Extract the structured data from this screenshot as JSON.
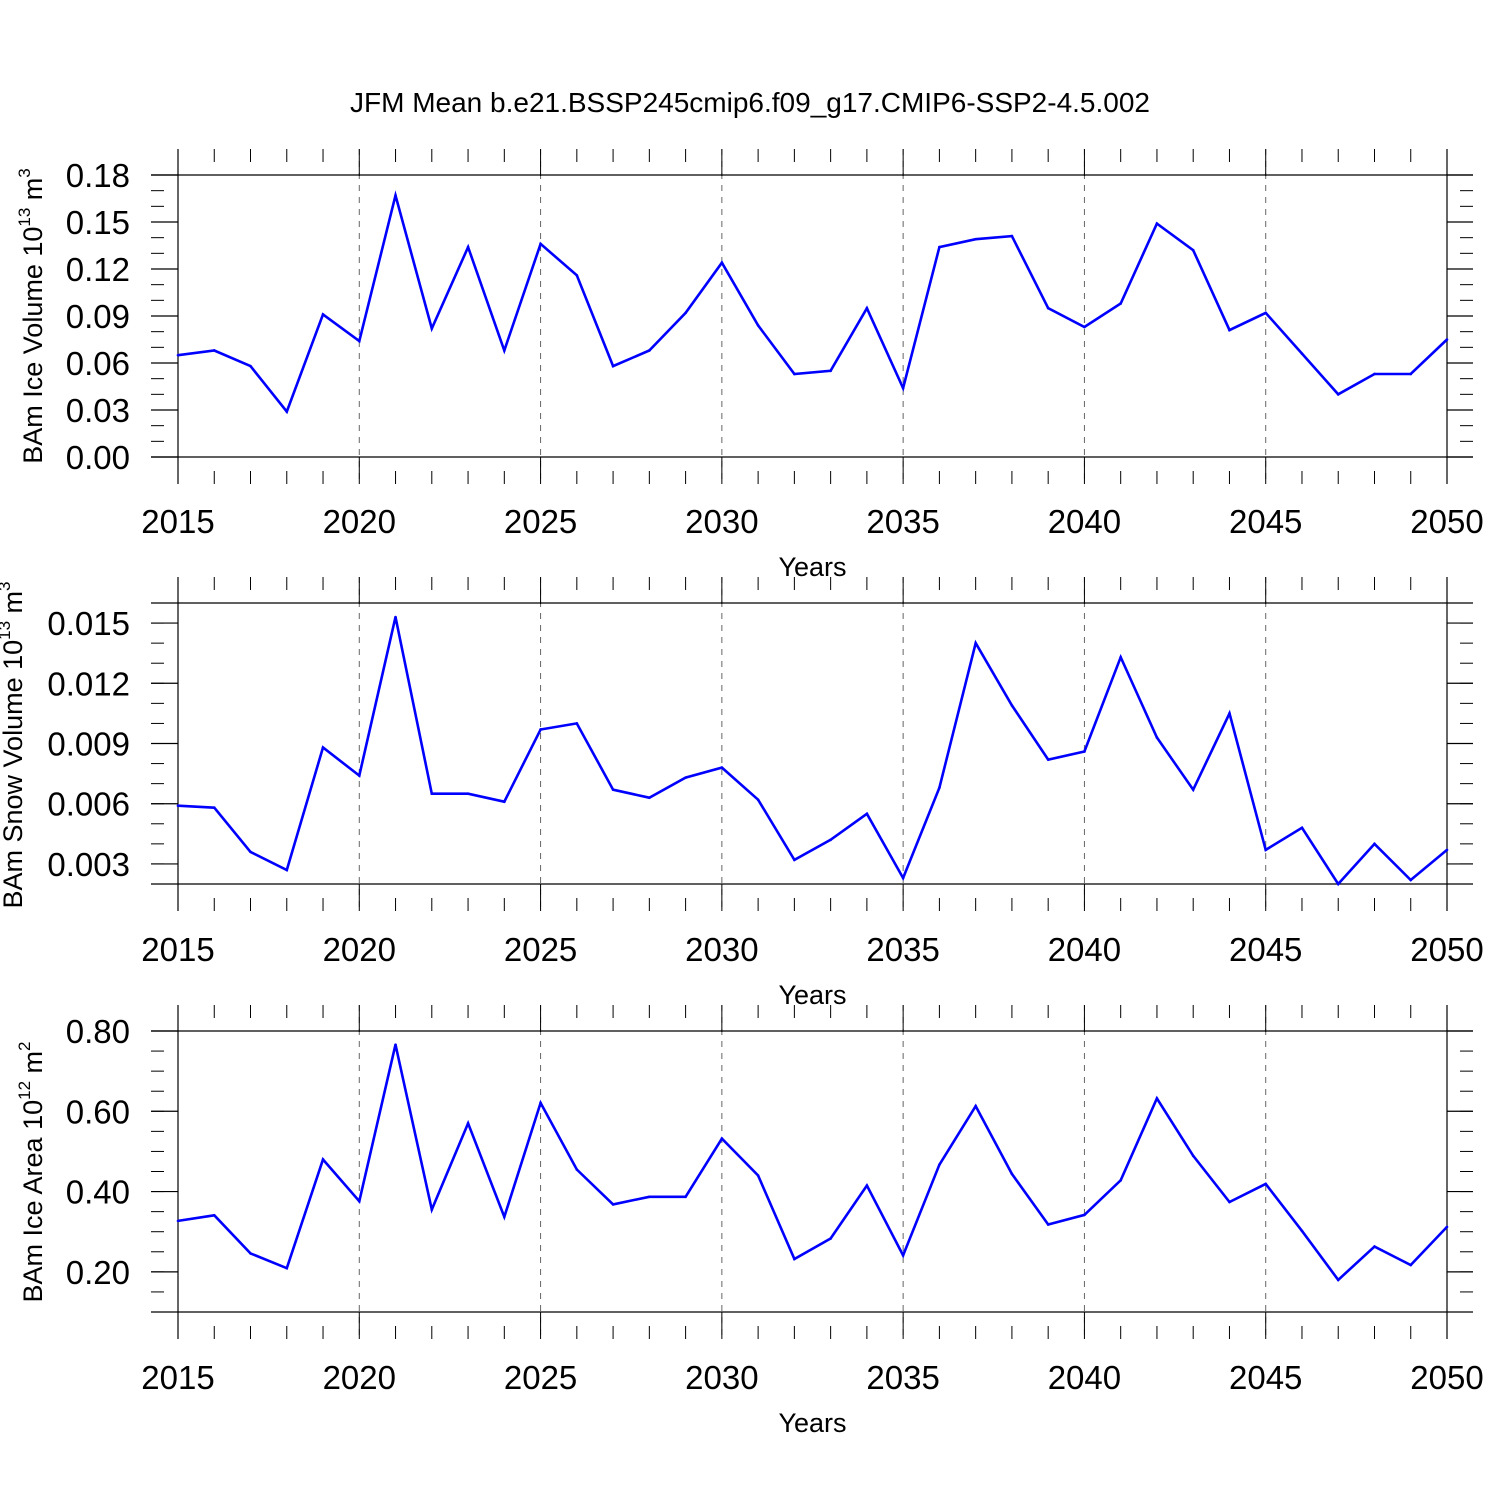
{
  "title": "JFM Mean b.e21.BSSP245cmip6.f09_g17.CMIP6-SSP2-4.5.002",
  "line_color": "#0000ff",
  "chart_data": [
    {
      "type": "line",
      "id": "ice-volume",
      "ylabel": {
        "main": "BAm Ice Volume 10",
        "exp": "13",
        "unit": " m",
        "unit_exp": "3"
      },
      "xlabel": "Years",
      "xlim": [
        2015,
        2050
      ],
      "ylim": [
        0.0,
        0.18
      ],
      "x_ticks": [
        "2015",
        "2020",
        "2025",
        "2030",
        "2035",
        "2040",
        "2045",
        "2050"
      ],
      "y_ticks": [
        "0.00",
        "0.03",
        "0.06",
        "0.09",
        "0.12",
        "0.15",
        "0.18"
      ],
      "y_tick_values": [
        0.0,
        0.03,
        0.06,
        0.09,
        0.12,
        0.15,
        0.18
      ],
      "y_minor_step": 0.01,
      "x": [
        2015,
        2016,
        2017,
        2018,
        2019,
        2020,
        2021,
        2022,
        2023,
        2024,
        2025,
        2026,
        2027,
        2028,
        2029,
        2030,
        2031,
        2032,
        2033,
        2034,
        2035,
        2036,
        2037,
        2038,
        2039,
        2040,
        2041,
        2042,
        2043,
        2044,
        2045,
        2046,
        2047,
        2048,
        2049,
        2050
      ],
      "values": [
        0.065,
        0.068,
        0.058,
        0.029,
        0.091,
        0.074,
        0.167,
        0.082,
        0.134,
        0.068,
        0.136,
        0.116,
        0.058,
        0.068,
        0.092,
        0.124,
        0.084,
        0.053,
        0.055,
        0.095,
        0.044,
        0.134,
        0.139,
        0.141,
        0.095,
        0.083,
        0.098,
        0.149,
        0.132,
        0.081,
        0.092,
        0.066,
        0.04,
        0.053,
        0.053,
        0.075
      ]
    },
    {
      "type": "line",
      "id": "snow-volume",
      "ylabel": {
        "main": "BAm Snow Volume 10",
        "exp": "13",
        "unit": " m",
        "unit_exp": "3"
      },
      "xlabel": "Years",
      "xlim": [
        2015,
        2050
      ],
      "ylim": [
        0.002,
        0.016
      ],
      "x_ticks": [
        "2015",
        "2020",
        "2025",
        "2030",
        "2035",
        "2040",
        "2045",
        "2050"
      ],
      "y_ticks": [
        "0.003",
        "0.006",
        "0.009",
        "0.012",
        "0.015"
      ],
      "y_tick_values": [
        0.003,
        0.006,
        0.009,
        0.012,
        0.015
      ],
      "y_minor_step": 0.001,
      "x": [
        2015,
        2016,
        2017,
        2018,
        2019,
        2020,
        2021,
        2022,
        2023,
        2024,
        2025,
        2026,
        2027,
        2028,
        2029,
        2030,
        2031,
        2032,
        2033,
        2034,
        2035,
        2036,
        2037,
        2038,
        2039,
        2040,
        2041,
        2042,
        2043,
        2044,
        2045,
        2046,
        2047,
        2048,
        2049,
        2050
      ],
      "values": [
        0.0059,
        0.0058,
        0.0036,
        0.0027,
        0.0088,
        0.0074,
        0.0153,
        0.0065,
        0.0065,
        0.0061,
        0.0097,
        0.01,
        0.0067,
        0.0063,
        0.0073,
        0.0078,
        0.0062,
        0.0032,
        0.0042,
        0.0055,
        0.0023,
        0.0068,
        0.014,
        0.0109,
        0.0082,
        0.0086,
        0.0133,
        0.0093,
        0.0067,
        0.0105,
        0.0037,
        0.0048,
        0.002,
        0.004,
        0.0022,
        0.0037
      ]
    },
    {
      "type": "line",
      "id": "ice-area",
      "ylabel": {
        "main": "BAm Ice Area 10",
        "exp": "12",
        "unit": " m",
        "unit_exp": "2"
      },
      "xlabel": "Years",
      "xlim": [
        2015,
        2050
      ],
      "ylim": [
        0.1,
        0.8
      ],
      "x_ticks": [
        "2015",
        "2020",
        "2025",
        "2030",
        "2035",
        "2040",
        "2045",
        "2050"
      ],
      "y_ticks": [
        "0.20",
        "0.40",
        "0.60",
        "0.80"
      ],
      "y_tick_values": [
        0.2,
        0.4,
        0.6,
        0.8
      ],
      "y_minor_step": 0.05,
      "x": [
        2015,
        2016,
        2017,
        2018,
        2019,
        2020,
        2021,
        2022,
        2023,
        2024,
        2025,
        2026,
        2027,
        2028,
        2029,
        2030,
        2031,
        2032,
        2033,
        2034,
        2035,
        2036,
        2037,
        2038,
        2039,
        2040,
        2041,
        2042,
        2043,
        2044,
        2045,
        2046,
        2047,
        2048,
        2049,
        2050
      ],
      "values": [
        0.327,
        0.341,
        0.246,
        0.209,
        0.48,
        0.376,
        0.766,
        0.355,
        0.57,
        0.337,
        0.621,
        0.455,
        0.368,
        0.387,
        0.387,
        0.532,
        0.44,
        0.232,
        0.283,
        0.415,
        0.241,
        0.467,
        0.613,
        0.444,
        0.318,
        0.342,
        0.428,
        0.632,
        0.489,
        0.374,
        0.419,
        0.302,
        0.18,
        0.263,
        0.217,
        0.312
      ]
    }
  ]
}
